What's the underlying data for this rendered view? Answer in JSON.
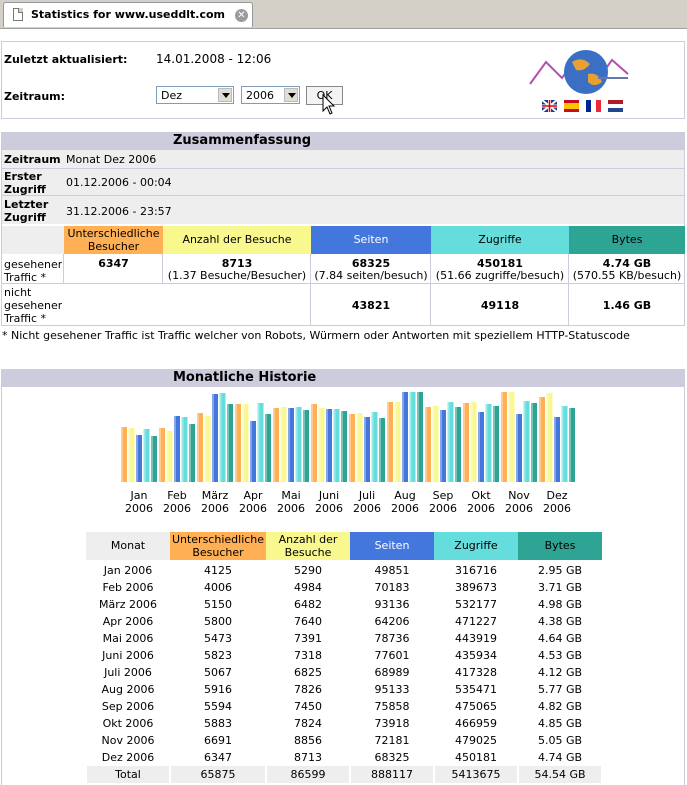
{
  "browser": {
    "tab_title": "Statistics for www.useddlt.com"
  },
  "top": {
    "updated_label": "Zuletzt aktualisiert:",
    "updated_value": "14.01.2008 - 12:06",
    "period_label": "Zeitraum:",
    "month_value": "Dez",
    "year_value": "2006",
    "ok_label": "OK"
  },
  "summary": {
    "title": "Zusammenfassung",
    "zeitraum_label": "Zeitraum",
    "zeitraum_value": "Monat Dez 2006",
    "first_label": "Erster Zugriff",
    "first_value": "01.12.2006 - 00:04",
    "last_label": "Letzter Zugriff",
    "last_value": "31.12.2006 - 23:57",
    "headers": [
      "Unterschiedliche Besucher",
      "Anzahl der Besuche",
      "Seiten",
      "Zugriffe",
      "Bytes"
    ],
    "seen_label": "gesehener Traffic *",
    "seen": [
      "6347",
      "8713",
      "68325",
      "450181",
      "4.74 GB"
    ],
    "seen_sub": [
      "",
      "(1.37 Besuche/Besucher)",
      "(7.84 seiten/besuch)",
      "(51.66 zugriffe/besuch)",
      "(570.55 KB/besuch)"
    ],
    "unseen_label": "nicht gesehener Traffic *",
    "unseen": [
      "",
      "",
      "43821",
      "49118",
      "1.46 GB"
    ],
    "footnote": "* Nicht gesehener Traffic ist Traffic welcher von Robots, Würmern oder Antworten mit speziellem HTTP-Statuscode"
  },
  "history": {
    "title": "Monatliche Historie",
    "table_headers": [
      "Monat",
      "Unterschiedliche Besucher",
      "Anzahl der Besuche",
      "Seiten",
      "Zugriffe",
      "Bytes"
    ],
    "rows": [
      [
        "Jan 2006",
        "4125",
        "5290",
        "49851",
        "316716",
        "2.95 GB"
      ],
      [
        "Feb 2006",
        "4006",
        "4984",
        "70183",
        "389673",
        "3.71 GB"
      ],
      [
        "März 2006",
        "5150",
        "6482",
        "93136",
        "532177",
        "4.98 GB"
      ],
      [
        "Apr 2006",
        "5800",
        "7640",
        "64206",
        "471227",
        "4.38 GB"
      ],
      [
        "Mai 2006",
        "5473",
        "7391",
        "78736",
        "443919",
        "4.64 GB"
      ],
      [
        "Juni 2006",
        "5823",
        "7318",
        "77601",
        "435934",
        "4.53 GB"
      ],
      [
        "Juli 2006",
        "5067",
        "6825",
        "68989",
        "417328",
        "4.12 GB"
      ],
      [
        "Aug 2006",
        "5916",
        "7826",
        "95133",
        "535471",
        "5.77 GB"
      ],
      [
        "Sep 2006",
        "5594",
        "7450",
        "75858",
        "475065",
        "4.82 GB"
      ],
      [
        "Okt 2006",
        "5883",
        "7824",
        "73918",
        "466959",
        "4.85 GB"
      ],
      [
        "Nov 2006",
        "6691",
        "8856",
        "72181",
        "479025",
        "5.05 GB"
      ],
      [
        "Dez 2006",
        "6347",
        "8713",
        "68325",
        "450181",
        "4.74 GB"
      ]
    ],
    "total": [
      "Total",
      "65875",
      "86599",
      "888117",
      "5413675",
      "54.54 GB"
    ]
  },
  "chart_data": {
    "type": "bar",
    "categories": [
      "Jan 2006",
      "Feb 2006",
      "März 2006",
      "Apr 2006",
      "Mai 2006",
      "Juni 2006",
      "Juli 2006",
      "Aug 2006",
      "Sep 2006",
      "Okt 2006",
      "Nov 2006",
      "Dez 2006"
    ],
    "category_lines": [
      [
        "Jan",
        "2006"
      ],
      [
        "Feb",
        "2006"
      ],
      [
        "März",
        "2006"
      ],
      [
        "Apr",
        "2006"
      ],
      [
        "Mai",
        "2006"
      ],
      [
        "Juni",
        "2006"
      ],
      [
        "Juli",
        "2006"
      ],
      [
        "Aug",
        "2006"
      ],
      [
        "Sep",
        "2006"
      ],
      [
        "Okt",
        "2006"
      ],
      [
        "Nov",
        "2006"
      ],
      [
        "Dez",
        "2006"
      ]
    ],
    "series": [
      {
        "values": [
          4125,
          4006,
          5150,
          5800,
          5473,
          5823,
          5067,
          5916,
          5594,
          5883,
          6691,
          6347
        ],
        "color": "#ffb055"
      },
      {
        "values": [
          5290,
          4984,
          6482,
          7640,
          7391,
          7318,
          6825,
          7826,
          7450,
          7824,
          8856,
          8713
        ],
        "color": "#f8f88f"
      },
      {
        "values": [
          49851,
          70183,
          93136,
          64206,
          78736,
          77601,
          68989,
          95133,
          75858,
          73918,
          72181,
          68325
        ],
        "color": "#4477dd"
      },
      {
        "values": [
          316716,
          389673,
          532177,
          471227,
          443919,
          435934,
          417328,
          535471,
          475065,
          466959,
          479025,
          450181
        ],
        "color": "#66dddd"
      },
      {
        "values": [
          2.95,
          3.71,
          4.98,
          4.38,
          4.64,
          4.53,
          4.12,
          5.77,
          4.82,
          4.85,
          5.05,
          4.74
        ],
        "color": "#2ea495"
      }
    ]
  },
  "colors": {
    "unique": "#ffb055",
    "visits": "#f8f88f",
    "pages": "#4477dd",
    "hits": "#66dddd",
    "bytes": "#2ea495",
    "header": "#ccccdd"
  },
  "icons": {
    "logo": "awstats-globe-logo",
    "flags": [
      "uk-flag",
      "es-flag",
      "fr-flag",
      "nl-flag"
    ]
  }
}
